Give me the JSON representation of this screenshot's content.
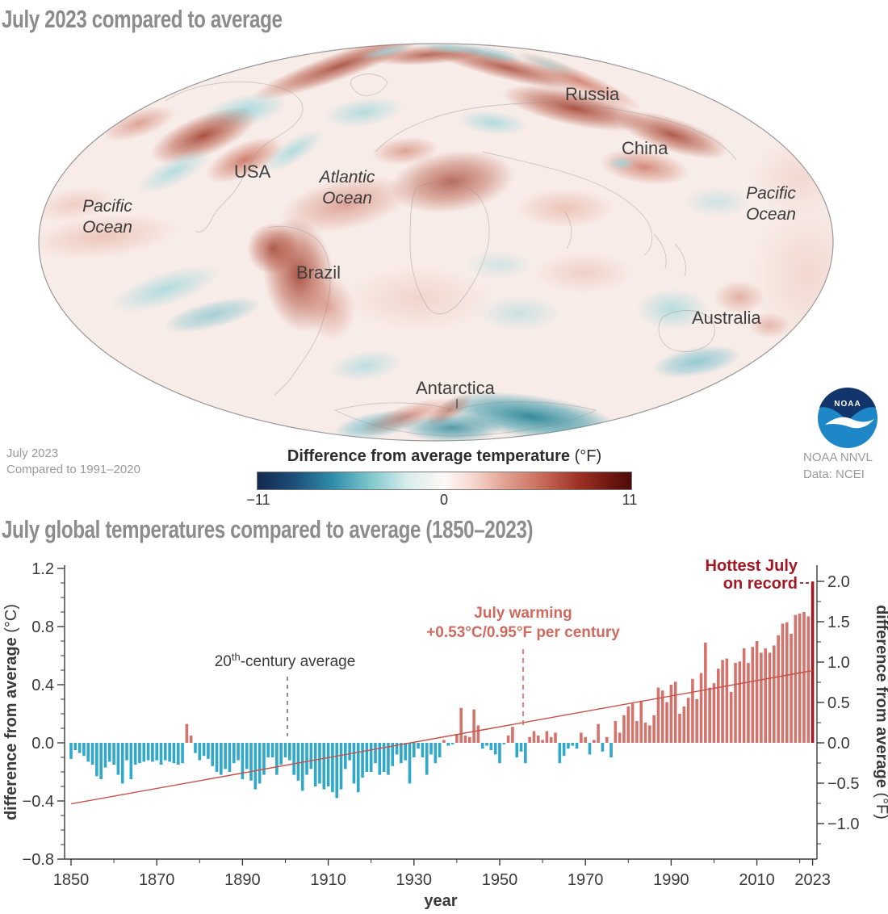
{
  "map_section": {
    "title": "July 2023 compared to average",
    "attribution_line1": "July 2023",
    "attribution_line2": "Compared to 1991–2020",
    "labels": {
      "usa": "USA",
      "russia": "Russia",
      "china": "China",
      "brazil": "Brazil",
      "australia": "Australia",
      "antarctica": "Antarctica",
      "pacific_left_1": "Pacific",
      "pacific_left_2": "Ocean",
      "pacific_right_1": "Pacific",
      "pacific_right_2": "Ocean",
      "atlantic_1": "Atlantic",
      "atlantic_2": "Ocean"
    },
    "colorbar": {
      "title_bold": "Difference from average temperature",
      "title_units": " (°F)",
      "min_label": "−11",
      "mid_label": "0",
      "max_label": "11"
    },
    "logo_text": "NOAA",
    "credit_line1": "NOAA NNVL",
    "credit_line2": "Data: NCEI"
  },
  "chart_section": {
    "title": "July global temperatures compared to average (1850–2023)",
    "ylabel_left_bold": "difference from average",
    "ylabel_left_units": " (°C)",
    "ylabel_right_bold": "difference from average",
    "ylabel_right_units": " (°F)",
    "xlabel": "year",
    "annotations": {
      "century_pre": "20",
      "century_sup": "th",
      "century_post": "-century average",
      "warming_line1": "July warming",
      "warming_line2": "+0.53°C/0.95°F per century",
      "hottest_line1": "Hottest July",
      "hottest_line2": "on record"
    }
  },
  "chart_data": [
    {
      "type": "heatmap",
      "subtype": "global-anomaly-map",
      "title": "July 2023 compared to average",
      "baseline": "Compared to 1991–2020",
      "colorbar_label": "Difference from average temperature (°F)",
      "colorbar_range": [
        -11,
        11
      ],
      "colorbar_ticks": [
        -11,
        0,
        11
      ],
      "regions_labeled": [
        "USA",
        "Russia",
        "China",
        "Brazil",
        "Australia",
        "Antarctica",
        "Pacific Ocean",
        "Atlantic Ocean",
        "Pacific Ocean"
      ],
      "credit": "NOAA NNVL, Data: NCEI"
    },
    {
      "type": "bar",
      "title": "July global temperatures compared to average (1850–2023)",
      "start_year": 1850,
      "end_year": 2023,
      "unit_left": "°C",
      "unit_right": "°F",
      "ylim_left": [
        -0.8,
        1.2
      ],
      "values_c": [
        -0.11,
        -0.05,
        -0.07,
        -0.09,
        -0.13,
        -0.15,
        -0.23,
        -0.25,
        -0.17,
        -0.13,
        -0.15,
        -0.22,
        -0.28,
        -0.12,
        -0.25,
        -0.15,
        -0.14,
        -0.13,
        -0.12,
        -0.13,
        -0.12,
        -0.15,
        -0.12,
        -0.13,
        -0.14,
        -0.15,
        -0.14,
        0.13,
        0.05,
        -0.07,
        -0.12,
        -0.09,
        -0.11,
        -0.16,
        -0.2,
        -0.22,
        -0.18,
        -0.2,
        -0.14,
        -0.12,
        -0.25,
        -0.18,
        -0.26,
        -0.32,
        -0.28,
        -0.22,
        -0.1,
        -0.1,
        -0.22,
        -0.15,
        -0.1,
        -0.12,
        -0.22,
        -0.26,
        -0.33,
        -0.22,
        -0.18,
        -0.3,
        -0.28,
        -0.32,
        -0.3,
        -0.34,
        -0.38,
        -0.32,
        -0.18,
        -0.12,
        -0.28,
        -0.34,
        -0.24,
        -0.2,
        -0.2,
        -0.14,
        -0.22,
        -0.2,
        -0.22,
        -0.16,
        -0.08,
        -0.14,
        -0.12,
        -0.28,
        -0.1,
        -0.04,
        -0.1,
        -0.22,
        -0.08,
        -0.14,
        -0.1,
        0.02,
        -0.02,
        -0.01,
        0.06,
        0.24,
        0.05,
        0.04,
        0.23,
        0.12,
        -0.04,
        -0.02,
        -0.05,
        -0.08,
        -0.14,
        -0.01,
        0.05,
        0.11,
        -0.1,
        -0.06,
        -0.14,
        0.04,
        0.08,
        0.05,
        0.02,
        0.08,
        0.04,
        0.07,
        -0.14,
        -0.09,
        -0.04,
        -0.02,
        -0.04,
        0.07,
        0.04,
        -0.08,
        0.02,
        0.13,
        -0.06,
        0.04,
        -0.1,
        0.15,
        0.07,
        0.19,
        0.25,
        0.27,
        0.15,
        0.29,
        0.14,
        0.12,
        0.19,
        0.38,
        0.36,
        0.28,
        0.4,
        0.42,
        0.2,
        0.25,
        0.31,
        0.44,
        0.3,
        0.48,
        0.69,
        0.38,
        0.41,
        0.51,
        0.57,
        0.58,
        0.35,
        0.55,
        0.56,
        0.65,
        0.55,
        0.66,
        0.7,
        0.62,
        0.65,
        0.62,
        0.67,
        0.74,
        0.82,
        0.83,
        0.75,
        0.88,
        0.89,
        0.9,
        0.87,
        1.11
      ],
      "trend": {
        "label": "July warming +0.53°C/0.95°F per century",
        "slope_c_per_century": 0.53,
        "value_1850_c": -0.42,
        "value_2023_c": 0.5
      },
      "annotations": [
        {
          "text": "20th-century average",
          "year": 1901
        },
        {
          "text": "July warming +0.53°C/0.95°F per century",
          "year": 1956
        },
        {
          "text": "Hottest July on record",
          "year": 2023,
          "value_c": 1.11,
          "value_f": 2.0
        }
      ],
      "axes": {
        "left_ticks": [
          1.2,
          0.8,
          0.4,
          0.0,
          -0.4,
          -0.8
        ],
        "left_tick_labels": [
          "1.2",
          "0.8",
          "0.4",
          "0.0",
          "−0.4",
          "−0.8"
        ],
        "right_ticks": [
          2.0,
          1.5,
          1.0,
          0.5,
          0.0,
          -0.5,
          -1.0
        ],
        "right_tick_labels": [
          "2.0",
          "1.5",
          "1.0",
          "0.5",
          "0.0",
          "−0.5",
          "−1.0"
        ],
        "x_ticks": [
          1850,
          1870,
          1890,
          1910,
          1930,
          1950,
          1970,
          1990,
          2010,
          2023
        ],
        "x_tick_labels": [
          "1850",
          "1870",
          "1890",
          "1910",
          "1930",
          "1950",
          "1970",
          "1990",
          "2010",
          "2023"
        ],
        "x_minor": [
          1860,
          1880,
          1900,
          1920,
          1940,
          1960,
          1980,
          2000,
          2020
        ]
      },
      "colors": {
        "positive": "#d4736c",
        "negative": "#2fa8c9",
        "record": "#a51622",
        "trend_line": "#c4524a"
      }
    }
  ]
}
